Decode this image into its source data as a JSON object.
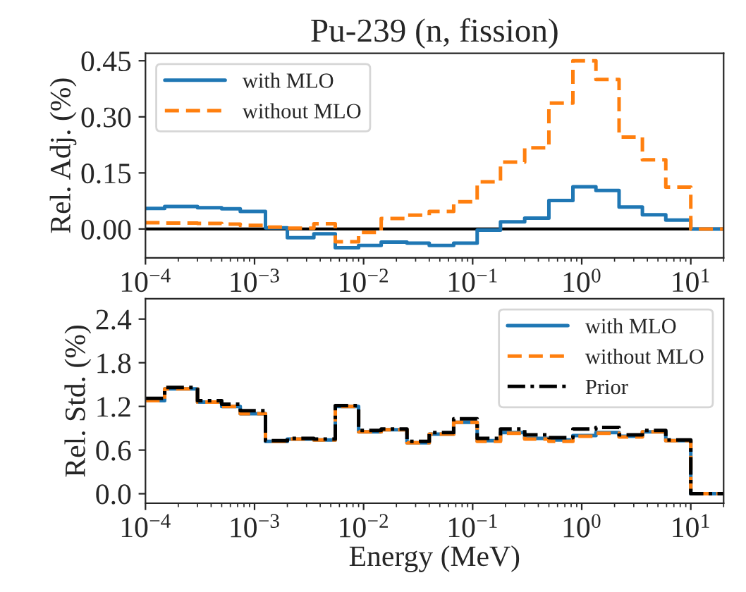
{
  "chart_data": [
    {
      "type": "step",
      "title": "Pu-239 (n, fission)",
      "ylabel": "Rel. Adj. (%)",
      "x": [
        0.0001,
        0.00015,
        0.0003,
        0.0005,
        0.00074,
        0.00126,
        0.002,
        0.0035,
        0.0055,
        0.009,
        0.0145,
        0.025,
        0.04,
        0.067,
        0.11,
        0.18,
        0.3,
        0.5,
        0.83,
        1.35,
        2.2,
        3.6,
        5.9,
        10,
        20
      ],
      "series": [
        {
          "name": "with MLO",
          "color": "#1f77b4",
          "line_style": "solid",
          "values": [
            0.055,
            0.06,
            0.057,
            0.054,
            0.047,
            0.003,
            -0.023,
            -0.013,
            -0.05,
            -0.044,
            -0.035,
            -0.038,
            -0.044,
            -0.038,
            -0.003,
            0.019,
            0.029,
            0.076,
            0.113,
            0.103,
            0.059,
            0.038,
            0.024,
            0.0,
            0.0
          ]
        },
        {
          "name": "without MLO",
          "color": "#ff7f0e",
          "line_style": "dashed",
          "values": [
            0.017,
            0.016,
            0.015,
            0.013,
            0.01,
            0.005,
            0.002,
            0.014,
            -0.034,
            -0.009,
            0.028,
            0.037,
            0.047,
            0.073,
            0.126,
            0.179,
            0.217,
            0.337,
            0.45,
            0.4,
            0.246,
            0.185,
            0.112,
            0.0,
            0.0
          ]
        }
      ],
      "log": "x",
      "xlim": [
        0.0001,
        20
      ],
      "xticks": [
        {
          "value": 0.0001,
          "label": "10$^{−4}$"
        },
        {
          "value": 0.001,
          "label": "10$^{−3}$"
        },
        {
          "value": 0.01,
          "label": "10$^{−2}$"
        },
        {
          "value": 0.1,
          "label": "10$^{−1}$"
        },
        {
          "value": 1,
          "label": "10$^{0}$"
        },
        {
          "value": 10,
          "label": "10$^{1}$"
        }
      ],
      "ylim": [
        -0.077,
        0.47
      ],
      "yticks": [
        {
          "value": 0,
          "label": "0.00"
        },
        {
          "value": 0.15,
          "label": "0.15"
        },
        {
          "value": 0.3,
          "label": "0.30"
        },
        {
          "value": 0.45,
          "label": "0.45"
        }
      ],
      "ref_lines": [
        {
          "axis": "y",
          "value": 0,
          "color": "#000000"
        }
      ],
      "grid": false,
      "legend": "top left"
    },
    {
      "type": "step",
      "xlabel": "Energy (MeV)",
      "ylabel": "Rel. Std. (%)",
      "x": [
        0.0001,
        0.00015,
        0.0003,
        0.0005,
        0.00074,
        0.00126,
        0.002,
        0.0035,
        0.0055,
        0.009,
        0.0145,
        0.025,
        0.04,
        0.067,
        0.11,
        0.18,
        0.3,
        0.5,
        0.83,
        1.35,
        2.2,
        3.6,
        5.9,
        10,
        20
      ],
      "series": [
        {
          "name": "with MLO",
          "color": "#1f77b4",
          "line_style": "solid",
          "values": [
            1.28,
            1.44,
            1.26,
            1.2,
            1.1,
            0.72,
            0.75,
            0.74,
            1.2,
            0.85,
            0.88,
            0.7,
            0.82,
            0.98,
            0.73,
            0.84,
            0.76,
            0.74,
            0.8,
            0.84,
            0.79,
            0.85,
            0.73,
            0.0,
            0.0
          ]
        },
        {
          "name": "without MLO",
          "color": "#ff7f0e",
          "line_style": "dashed",
          "values": [
            1.28,
            1.44,
            1.26,
            1.2,
            1.1,
            0.72,
            0.75,
            0.74,
            1.2,
            0.85,
            0.88,
            0.7,
            0.82,
            0.98,
            0.72,
            0.83,
            0.75,
            0.72,
            0.79,
            0.83,
            0.78,
            0.85,
            0.73,
            0.0,
            0.0
          ]
        },
        {
          "name": "Prior",
          "color": "#000000",
          "line_style": "dashdot",
          "values": [
            1.31,
            1.46,
            1.28,
            1.23,
            1.14,
            0.73,
            0.76,
            0.75,
            1.21,
            0.87,
            0.89,
            0.72,
            0.84,
            1.03,
            0.76,
            0.89,
            0.81,
            0.77,
            0.89,
            0.91,
            0.81,
            0.87,
            0.74,
            0.0,
            0.0
          ]
        }
      ],
      "log": "x",
      "xlim": [
        0.0001,
        20
      ],
      "xticks": [
        {
          "value": 0.0001,
          "label": "10$^{−4}$"
        },
        {
          "value": 0.001,
          "label": "10$^{−3}$"
        },
        {
          "value": 0.01,
          "label": "10$^{−2}$"
        },
        {
          "value": 0.1,
          "label": "10$^{−1}$"
        },
        {
          "value": 1,
          "label": "10$^{0}$"
        },
        {
          "value": 10,
          "label": "10$^{1}$"
        }
      ],
      "ylim": [
        -0.13,
        2.68
      ],
      "yticks": [
        {
          "value": 0,
          "label": "0.0"
        },
        {
          "value": 0.6,
          "label": "0.6"
        },
        {
          "value": 1.2,
          "label": "1.2"
        },
        {
          "value": 1.8,
          "label": "1.8"
        },
        {
          "value": 2.4,
          "label": "2.4"
        }
      ],
      "grid": false,
      "legend": "top right"
    }
  ]
}
